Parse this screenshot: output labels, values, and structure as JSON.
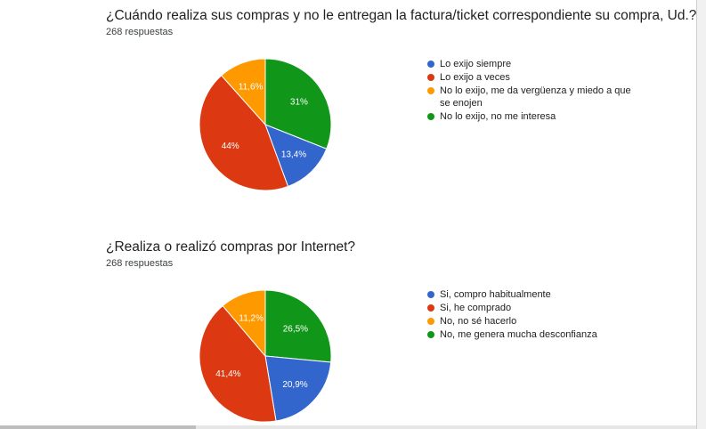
{
  "colors": {
    "blue": "#3366cc",
    "red": "#dc3912",
    "orange": "#ff9900",
    "green": "#109618"
  },
  "chart_data": [
    {
      "type": "pie",
      "title": "¿Cuándo realiza sus compras y no le entregan la factura/ticket correspondiente su compra, Ud.?",
      "responses_count": "268",
      "responses_word": "respuestas",
      "legend_position": "right",
      "slices": [
        {
          "label": "Lo exijo siempre",
          "value": 13.4,
          "display": "13,4%",
          "color": "#3366cc"
        },
        {
          "label": "Lo exijo a veces",
          "value": 44,
          "display": "44%",
          "color": "#dc3912"
        },
        {
          "label": "No lo exijo, me da vergüenza y miedo a que se enojen",
          "value": 11.6,
          "display": "11,6%",
          "color": "#ff9900"
        },
        {
          "label": "No lo exijo, no me interesa",
          "value": 31,
          "display": "31%",
          "color": "#109618"
        }
      ]
    },
    {
      "type": "pie",
      "title": "¿Realiza o realizó compras por Internet?",
      "responses_count": "268",
      "responses_word": "respuestas",
      "legend_position": "right",
      "slices": [
        {
          "label": "Si, compro habitualmente",
          "value": 20.9,
          "display": "20,9%",
          "color": "#3366cc"
        },
        {
          "label": "Si, he comprado",
          "value": 41.4,
          "display": "41,4%",
          "color": "#dc3912"
        },
        {
          "label": "No, no sé hacerlo",
          "value": 11.2,
          "display": "11,2%",
          "color": "#ff9900"
        },
        {
          "label": "No, me genera mucha desconfianza",
          "value": 26.5,
          "display": "26,5%",
          "color": "#109618"
        }
      ]
    }
  ]
}
